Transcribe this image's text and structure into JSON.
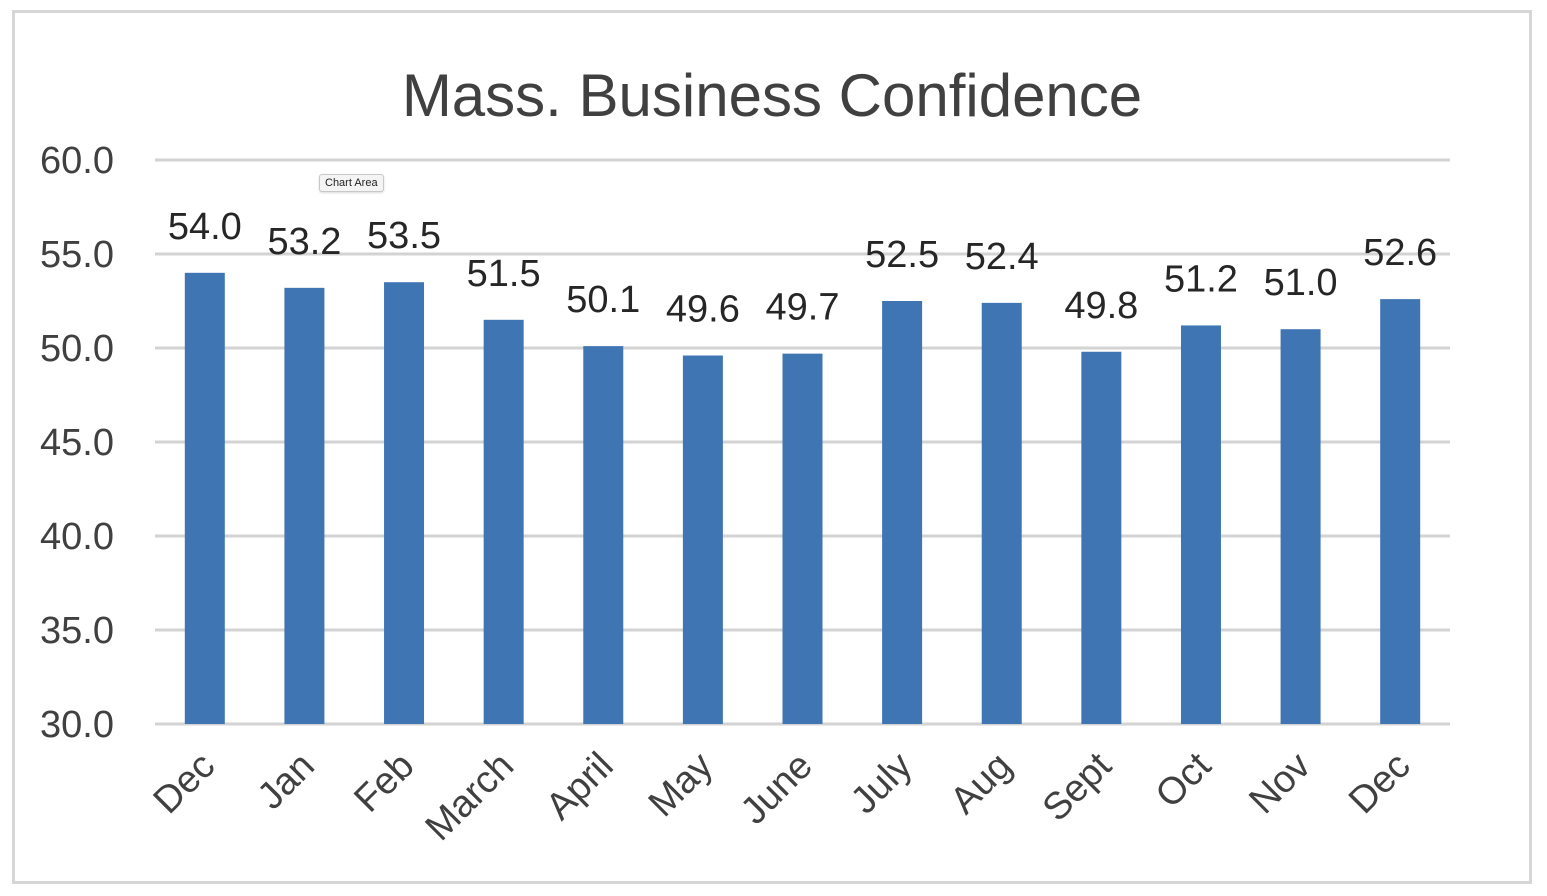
{
  "tooltip": "Chart Area",
  "chart_data": {
    "type": "bar",
    "title": "Mass. Business Confidence",
    "xlabel": "",
    "ylabel": "",
    "ylim": [
      30,
      60
    ],
    "yticks": [
      "30.0",
      "35.0",
      "40.0",
      "45.0",
      "50.0",
      "55.0",
      "60.0"
    ],
    "categories": [
      "Dec",
      "Jan",
      "Feb",
      "March",
      "April",
      "May",
      "June",
      "July",
      "Aug",
      "Sept",
      "Oct",
      "Nov",
      "Dec"
    ],
    "values": [
      54.0,
      53.2,
      53.5,
      51.5,
      50.1,
      49.6,
      49.7,
      52.5,
      52.4,
      49.8,
      51.2,
      51.0,
      52.6
    ],
    "value_labels": [
      "54.0",
      "53.2",
      "53.5",
      "51.5",
      "50.1",
      "49.6",
      "49.7",
      "52.5",
      "52.4",
      "49.8",
      "51.2",
      "51.0",
      "52.6"
    ],
    "grid": true,
    "legend": "none",
    "bar_color": "#3f75b2",
    "grid_color": "#d3d3d3",
    "text_color": "#404040",
    "label_color": "#262626"
  }
}
